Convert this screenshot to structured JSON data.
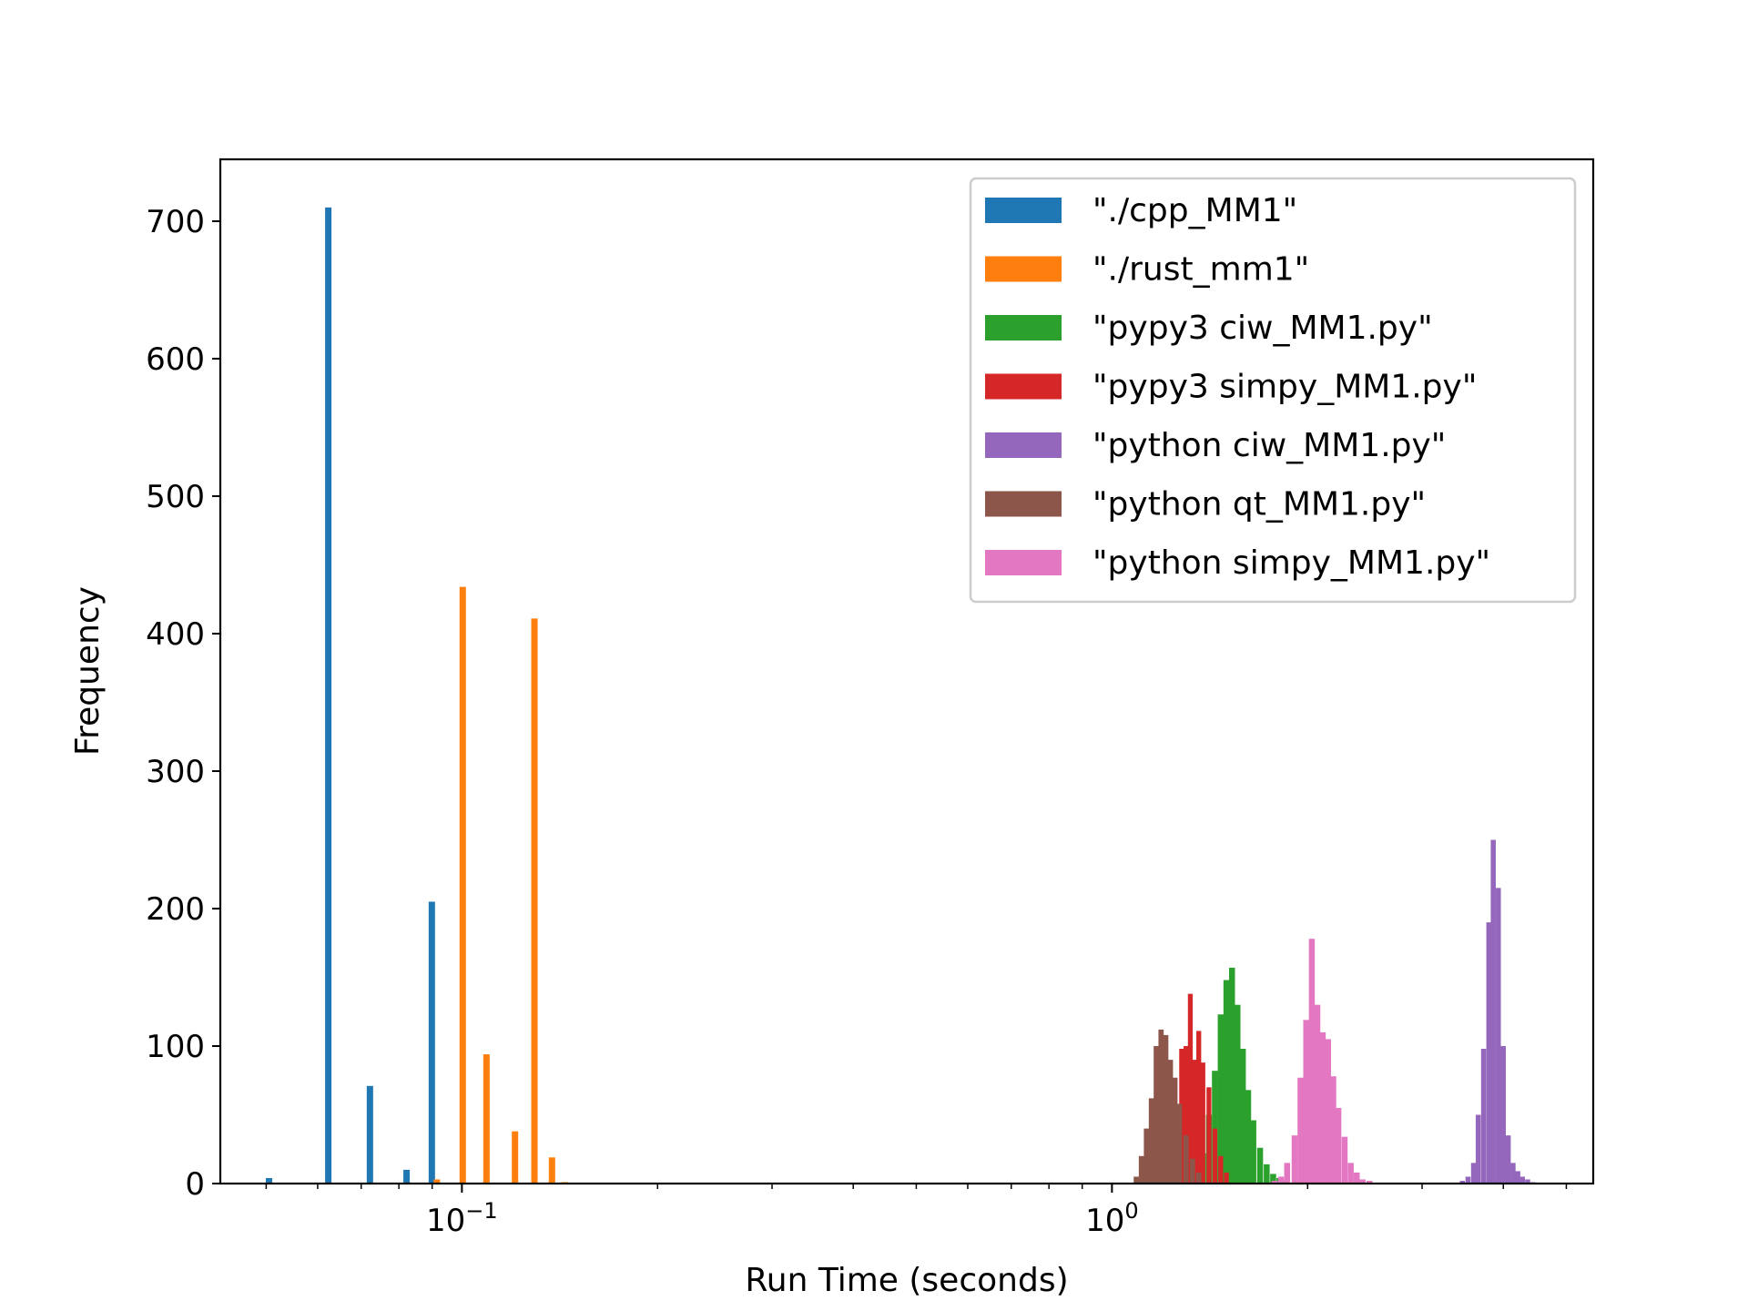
{
  "chart_data": {
    "type": "bar",
    "title": "",
    "xlabel": "Run Time (seconds)",
    "ylabel": "Frequency",
    "xscale": "log",
    "xlim": [
      0.0425,
      5.5
    ],
    "ylim": [
      0,
      745
    ],
    "x_ticks": [
      {
        "value": 0.1,
        "base": "10",
        "exp": "−1"
      },
      {
        "value": 1,
        "base": "10",
        "exp": "0"
      }
    ],
    "y_ticks": [
      0,
      100,
      200,
      300,
      400,
      500,
      600,
      700
    ],
    "grid": false,
    "legend_position": "top-right",
    "series": [
      {
        "name": "\"./cpp_MM1\"",
        "color": "#1f77b4",
        "bars": [
          [
            0.0505,
            4
          ],
          [
            0.0623,
            710
          ],
          [
            0.0722,
            71
          ],
          [
            0.0822,
            10
          ],
          [
            0.0899,
            205
          ]
        ]
      },
      {
        "name": "\"./rust_mm1\"",
        "color": "#ff7f0e",
        "bars": [
          [
            0.0915,
            3
          ],
          [
            0.1003,
            434
          ],
          [
            0.1091,
            94
          ],
          [
            0.1207,
            38
          ],
          [
            0.1293,
            411
          ],
          [
            0.1376,
            19
          ],
          [
            0.144,
            1
          ]
        ]
      },
      {
        "name": "\"pypy3 ciw_MM1.py\"",
        "color": "#2ca02c",
        "bars": [
          [
            1.35,
            10
          ],
          [
            1.38,
            22
          ],
          [
            1.41,
            50
          ],
          [
            1.44,
            82
          ],
          [
            1.47,
            123
          ],
          [
            1.5,
            148
          ],
          [
            1.53,
            157
          ],
          [
            1.56,
            130
          ],
          [
            1.59,
            98
          ],
          [
            1.62,
            68
          ],
          [
            1.65,
            46
          ],
          [
            1.69,
            26
          ],
          [
            1.73,
            14
          ],
          [
            1.77,
            7
          ],
          [
            1.81,
            4
          ],
          [
            1.85,
            2
          ]
        ]
      },
      {
        "name": "\"pypy3 simpy_MM1.py\"",
        "color": "#d62728",
        "bars": [
          [
            1.2,
            4
          ],
          [
            1.22,
            15
          ],
          [
            1.24,
            30
          ],
          [
            1.26,
            55
          ],
          [
            1.28,
            98
          ],
          [
            1.3,
            100
          ],
          [
            1.32,
            138
          ],
          [
            1.34,
            90
          ],
          [
            1.36,
            111
          ],
          [
            1.38,
            88
          ],
          [
            1.41,
            70
          ],
          [
            1.44,
            40
          ],
          [
            1.47,
            20
          ],
          [
            1.5,
            8
          ]
        ]
      },
      {
        "name": "\"python ciw_MM1.py\"",
        "color": "#9467bd",
        "bars": [
          [
            3.46,
            2
          ],
          [
            3.53,
            5
          ],
          [
            3.6,
            15
          ],
          [
            3.66,
            50
          ],
          [
            3.73,
            98
          ],
          [
            3.8,
            190
          ],
          [
            3.86,
            250
          ],
          [
            3.93,
            215
          ],
          [
            4.0,
            100
          ],
          [
            4.07,
            35
          ],
          [
            4.14,
            15
          ],
          [
            4.21,
            9
          ],
          [
            4.28,
            5
          ],
          [
            4.36,
            3
          ],
          [
            4.44,
            1
          ]
        ]
      },
      {
        "name": "\"python qt_MM1.py\"",
        "color": "#8c564b",
        "bars": [
          [
            1.09,
            5
          ],
          [
            1.11,
            20
          ],
          [
            1.13,
            40
          ],
          [
            1.15,
            62
          ],
          [
            1.17,
            100
          ],
          [
            1.19,
            112
          ],
          [
            1.21,
            108
          ],
          [
            1.23,
            90
          ],
          [
            1.25,
            77
          ],
          [
            1.27,
            58
          ],
          [
            1.3,
            35
          ],
          [
            1.33,
            18
          ],
          [
            1.36,
            8
          ]
        ]
      },
      {
        "name": "\"python simpy_MM1.py\"",
        "color": "#e377c2",
        "bars": [
          [
            1.78,
            2
          ],
          [
            1.82,
            5
          ],
          [
            1.86,
            15
          ],
          [
            1.91,
            35
          ],
          [
            1.95,
            77
          ],
          [
            1.99,
            119
          ],
          [
            2.03,
            178
          ],
          [
            2.07,
            130
          ],
          [
            2.11,
            110
          ],
          [
            2.15,
            105
          ],
          [
            2.19,
            78
          ],
          [
            2.23,
            55
          ],
          [
            2.28,
            34
          ],
          [
            2.33,
            15
          ],
          [
            2.38,
            8
          ],
          [
            2.43,
            3
          ],
          [
            2.49,
            2
          ]
        ]
      }
    ]
  }
}
